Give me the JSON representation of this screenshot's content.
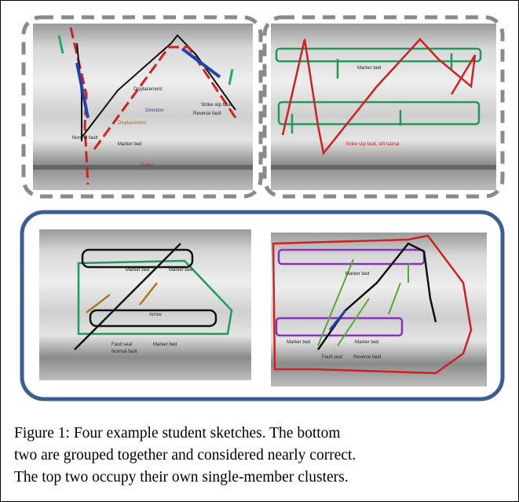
{
  "figure": {
    "caption": [
      "Figure 1: Four example student sketches.  The bottom",
      "two are grouped together and considered nearly correct.",
      "The top two occupy their own single-member clusters."
    ],
    "sketches": [
      {
        "labels": [
          "Displacement",
          "Direction",
          "Displacement",
          "Normal fault",
          "Marker bed",
          "Strike slip fault",
          "Reverse fault",
          "Fallen"
        ]
      },
      {
        "labels": [
          "Marker bed",
          "Strike slip fault, left lateral"
        ]
      },
      {
        "labels": [
          "Marker bed",
          "Marker bed",
          "Arrow",
          "Fault seal",
          "Marker bed",
          "Normal fault"
        ]
      },
      {
        "labels": [
          "Marker bed",
          "Marker bed",
          "Marker bed",
          "Fault seal",
          "Reverse fault"
        ]
      }
    ]
  }
}
